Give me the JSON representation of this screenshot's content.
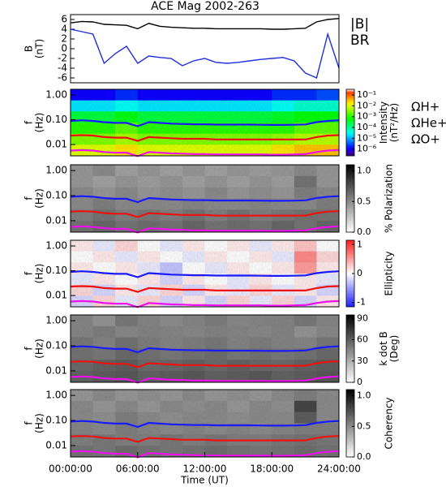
{
  "chart_data": [
    {
      "type": "line",
      "title": "ACE Mag 2002-263",
      "ylabel": [
        "B",
        "(nT)"
      ],
      "x": [
        0,
        1,
        2,
        3,
        4,
        5,
        6,
        7,
        8,
        9,
        10,
        11,
        12,
        13,
        14,
        15,
        16,
        17,
        18,
        19,
        20,
        21,
        22,
        23,
        24
      ],
      "xlim": [
        0,
        24
      ],
      "ylim": [
        -7,
        7
      ],
      "yticks": [
        -6,
        -4,
        -2,
        0,
        2,
        4,
        6
      ],
      "series": [
        {
          "name": "|B|",
          "color": "#000000",
          "values": [
            5.3,
            5.6,
            5.5,
            5.0,
            4.9,
            4.8,
            4.1,
            5.2,
            4.6,
            4.4,
            4.3,
            4.2,
            4.2,
            4.1,
            4.1,
            4.1,
            4.1,
            4.1,
            4.0,
            4.0,
            4.1,
            4.2,
            5.5,
            6.0,
            6.2
          ]
        },
        {
          "name": "BR",
          "color": "#1f2fe0",
          "values": [
            4.0,
            3.5,
            3.0,
            -3.0,
            -1.0,
            0.5,
            -3.0,
            -1.5,
            -1.8,
            -2.0,
            -3.5,
            -2.5,
            -2.0,
            -2.8,
            -3.0,
            -2.8,
            -2.5,
            -2.2,
            -2.0,
            -1.8,
            -2.5,
            -5.0,
            -6.0,
            3.0,
            -4.0
          ]
        }
      ]
    },
    {
      "type": "heatmap",
      "ylabel": [
        "f",
        "(Hz)"
      ],
      "xlim": [
        0,
        24
      ],
      "ylim": [
        0.0035,
        1.7
      ],
      "yticks": [
        {
          "value": 1,
          "label": "1.00"
        },
        {
          "value": 0.1,
          "label": "0.10"
        },
        {
          "value": 0.01,
          "label": "0.01"
        }
      ],
      "colormap": "rainbow",
      "color_scale": "log",
      "clim": [
        2.4e-07,
        0.34
      ],
      "cticks": [
        {
          "value": 0.1,
          "label": "10⁻¹"
        },
        {
          "value": 0.01,
          "label": "10⁻²"
        },
        {
          "value": 0.001,
          "label": "10⁻³"
        },
        {
          "value": 0.0001,
          "label": "10⁻⁴"
        },
        {
          "value": 1e-05,
          "label": "10⁻⁵"
        },
        {
          "value": 1e-06,
          "label": "10⁻⁶"
        }
      ],
      "clabel": [
        "Intensity",
        "(nT²/Hz)"
      ],
      "z": [
        [
          1e-06,
          1e-06,
          2e-06,
          1e-06,
          1e-06,
          1e-06,
          1e-06,
          1e-06,
          1e-06,
          2e-06,
          2e-06,
          3e-06
        ],
        [
          2e-05,
          2e-05,
          3e-05,
          2e-05,
          2e-05,
          2e-05,
          2e-05,
          2e-05,
          2e-05,
          3e-05,
          5e-05,
          5e-05
        ],
        [
          0.0003,
          0.0003,
          0.0005,
          0.0003,
          0.0003,
          0.0003,
          0.0003,
          0.0003,
          0.0003,
          0.0004,
          0.0006,
          0.0006
        ],
        [
          0.001,
          0.001,
          0.002,
          0.001,
          0.001,
          0.001,
          0.001,
          0.001,
          0.001,
          0.001,
          0.002,
          0.002
        ],
        [
          0.003,
          0.003,
          0.005,
          0.003,
          0.003,
          0.003,
          0.003,
          0.003,
          0.003,
          0.004,
          0.006,
          0.006
        ],
        [
          0.01,
          0.01,
          0.02,
          0.01,
          0.01,
          0.01,
          0.01,
          0.01,
          0.01,
          0.02,
          0.03,
          0.03
        ]
      ],
      "x": [
        0,
        1,
        2,
        3,
        4,
        5,
        6,
        7,
        8,
        9,
        10,
        11,
        12,
        13,
        14,
        15,
        16,
        17,
        18,
        19,
        20,
        21,
        22,
        23,
        24
      ],
      "series": [
        {
          "name": "ΩH+",
          "color": "#1a1aff",
          "values": [
            0.09,
            0.095,
            0.09,
            0.08,
            0.075,
            0.075,
            0.055,
            0.08,
            0.075,
            0.07,
            0.068,
            0.066,
            0.066,
            0.064,
            0.064,
            0.064,
            0.064,
            0.063,
            0.062,
            0.062,
            0.063,
            0.065,
            0.08,
            0.09,
            0.095
          ]
        },
        {
          "name": "ΩHe+",
          "color": "#ee1111",
          "values": [
            0.023,
            0.024,
            0.023,
            0.02,
            0.019,
            0.019,
            0.014,
            0.02,
            0.019,
            0.018,
            0.017,
            0.017,
            0.017,
            0.016,
            0.016,
            0.016,
            0.016,
            0.016,
            0.016,
            0.016,
            0.016,
            0.016,
            0.02,
            0.023,
            0.024
          ]
        },
        {
          "name": "ΩO+",
          "color": "#ee11ee",
          "values": [
            0.0057,
            0.006,
            0.0057,
            0.005,
            0.0047,
            0.0047,
            0.0034,
            0.005,
            0.0047,
            0.0044,
            0.0043,
            0.0041,
            0.0041,
            0.004,
            0.004,
            0.004,
            0.004,
            0.004,
            0.0039,
            0.0039,
            0.004,
            0.0041,
            0.005,
            0.0057,
            0.006
          ]
        }
      ]
    },
    {
      "type": "heatmap",
      "ylabel": [
        "f",
        "(Hz)"
      ],
      "xlim": [
        0,
        24
      ],
      "ylim": [
        0.0035,
        1.7
      ],
      "yticks": [
        {
          "value": 1,
          "label": "1.00"
        },
        {
          "value": 0.1,
          "label": "0.10"
        },
        {
          "value": 0.01,
          "label": "0.01"
        }
      ],
      "colormap": "gray",
      "color_scale": "linear",
      "clim": [
        0,
        1.1
      ],
      "cticks": [
        {
          "value": 1,
          "label": "1.0"
        },
        {
          "value": 0.5,
          "label": "0.5"
        },
        {
          "value": 0,
          "label": "0.0"
        }
      ],
      "clabel": [
        "% Polarization"
      ],
      "z": [
        [
          0.45,
          0.5,
          0.4,
          0.45,
          0.4,
          0.45,
          0.4,
          0.45,
          0.42,
          0.45,
          0.5,
          0.45
        ],
        [
          0.45,
          0.4,
          0.45,
          0.42,
          0.45,
          0.4,
          0.45,
          0.4,
          0.45,
          0.42,
          0.6,
          0.45
        ],
        [
          0.5,
          0.45,
          0.5,
          0.45,
          0.48,
          0.45,
          0.5,
          0.45,
          0.48,
          0.45,
          0.55,
          0.5
        ],
        [
          0.5,
          0.55,
          0.5,
          0.5,
          0.5,
          0.52,
          0.5,
          0.5,
          0.52,
          0.5,
          0.5,
          0.55
        ],
        [
          0.55,
          0.6,
          0.55,
          0.58,
          0.55,
          0.6,
          0.55,
          0.6,
          0.55,
          0.58,
          0.6,
          0.6
        ],
        [
          0.6,
          0.65,
          0.6,
          0.62,
          0.6,
          0.65,
          0.6,
          0.62,
          0.6,
          0.65,
          0.6,
          0.65
        ]
      ]
    },
    {
      "type": "heatmap",
      "ylabel": [
        "f",
        "(Hz)"
      ],
      "xlim": [
        0,
        24
      ],
      "ylim": [
        0.0035,
        1.7
      ],
      "yticks": [
        {
          "value": 1,
          "label": "1.00"
        },
        {
          "value": 0.1,
          "label": "0.10"
        },
        {
          "value": 0.01,
          "label": "0.01"
        }
      ],
      "colormap": "bwr",
      "color_scale": "linear",
      "clim": [
        -1.15,
        1.15
      ],
      "cticks": [
        1,
        0,
        -1
      ],
      "clabel": [
        "Ellipticity"
      ],
      "z": [
        [
          0.1,
          -0.1,
          0.2,
          0,
          -0.1,
          0.1,
          0,
          0.1,
          -0.1,
          0.1,
          0.3,
          0
        ],
        [
          0,
          0.1,
          -0.1,
          0.1,
          0,
          -0.1,
          0.1,
          0,
          0.1,
          -0.1,
          0.6,
          0.2
        ],
        [
          0.1,
          0,
          0.1,
          -0.1,
          -0.3,
          0,
          -0.1,
          0.1,
          0,
          0.1,
          0.5,
          0.1
        ],
        [
          -0.1,
          0.1,
          0,
          0.1,
          -0.2,
          0.1,
          0,
          -0.1,
          0.1,
          0,
          0.1,
          -0.1
        ],
        [
          0.2,
          -0.2,
          0.1,
          -0.1,
          0.2,
          -0.2,
          0.1,
          -0.1,
          0.2,
          -0.1,
          0.1,
          -0.2
        ],
        [
          -0.2,
          0.2,
          -0.1,
          0.2,
          -0.2,
          0.1,
          -0.2,
          0.2,
          -0.1,
          0.2,
          -0.2,
          0.1
        ]
      ]
    },
    {
      "type": "heatmap",
      "ylabel": [
        "f",
        "(Hz)"
      ],
      "xlim": [
        0,
        24
      ],
      "ylim": [
        0.0035,
        1.7
      ],
      "yticks": [
        {
          "value": 1,
          "label": "1.00"
        },
        {
          "value": 0.1,
          "label": "0.10"
        },
        {
          "value": 0.01,
          "label": "0.01"
        }
      ],
      "colormap": "gray",
      "color_scale": "linear",
      "clim": [
        0,
        95
      ],
      "cticks": [
        90,
        60,
        30,
        0
      ],
      "clabel": [
        "k dot B",
        "(Deg)"
      ],
      "z": [
        [
          45,
          40,
          50,
          45,
          42,
          45,
          48,
          44,
          45,
          46,
          50,
          45
        ],
        [
          45,
          48,
          44,
          46,
          45,
          44,
          46,
          45,
          44,
          46,
          40,
          44
        ],
        [
          50,
          46,
          52,
          48,
          46,
          48,
          50,
          46,
          48,
          46,
          45,
          50
        ],
        [
          52,
          50,
          55,
          52,
          50,
          52,
          54,
          50,
          52,
          50,
          52,
          55
        ],
        [
          55,
          58,
          60,
          55,
          56,
          58,
          55,
          58,
          56,
          55,
          58,
          60
        ],
        [
          58,
          60,
          62,
          58,
          60,
          62,
          58,
          60,
          62,
          58,
          60,
          62
        ]
      ]
    },
    {
      "type": "heatmap",
      "ylabel": [
        "f",
        "(Hz)"
      ],
      "xlim": [
        0,
        24
      ],
      "ylim": [
        0.0035,
        1.7
      ],
      "yticks": [
        {
          "value": 1,
          "label": "1.00"
        },
        {
          "value": 0.1,
          "label": "0.10"
        },
        {
          "value": 0.01,
          "label": "0.01"
        }
      ],
      "colormap": "gray",
      "color_scale": "linear",
      "clim": [
        0,
        1.1
      ],
      "cticks": [
        {
          "value": 1,
          "label": "1.0"
        },
        {
          "value": 0.5,
          "label": "0.5"
        },
        {
          "value": 0,
          "label": "0.0"
        }
      ],
      "clabel": [
        "Coherency"
      ],
      "xticks": [
        {
          "value": 0,
          "label": "00:00:00"
        },
        {
          "value": 6,
          "label": "06:00:00"
        },
        {
          "value": 12,
          "label": "12:00:00"
        },
        {
          "value": 18,
          "label": "18:00:00"
        },
        {
          "value": 24,
          "label": "24:00:00"
        }
      ],
      "xlabel": "Time (UT)",
      "z": [
        [
          0.45,
          0.5,
          0.45,
          0.48,
          0.45,
          0.5,
          0.45,
          0.48,
          0.45,
          0.5,
          0.55,
          0.5
        ],
        [
          0.5,
          0.45,
          0.5,
          0.45,
          0.5,
          0.48,
          0.5,
          0.45,
          0.5,
          0.48,
          0.8,
          0.5
        ],
        [
          0.5,
          0.48,
          0.55,
          0.5,
          0.48,
          0.5,
          0.5,
          0.48,
          0.5,
          0.5,
          0.7,
          0.5
        ],
        [
          0.52,
          0.5,
          0.55,
          0.52,
          0.5,
          0.52,
          0.5,
          0.52,
          0.5,
          0.52,
          0.55,
          0.55
        ],
        [
          0.55,
          0.58,
          0.55,
          0.55,
          0.58,
          0.55,
          0.58,
          0.55,
          0.55,
          0.58,
          0.6,
          0.58
        ],
        [
          0.6,
          0.58,
          0.62,
          0.6,
          0.58,
          0.6,
          0.62,
          0.6,
          0.58,
          0.6,
          0.62,
          0.6
        ]
      ]
    }
  ]
}
